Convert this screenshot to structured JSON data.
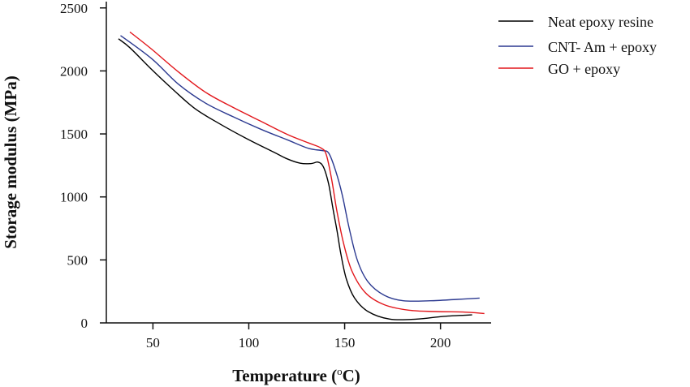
{
  "chart_data": {
    "type": "line",
    "title": "",
    "xlabel": "Temperature (",
    "xlabel_sup": "o",
    "xlabel_tail": "C)",
    "ylabel": "Storage modulus (MPa)",
    "xlim": [
      25.7,
      226.4
    ],
    "ylim": [
      0,
      2550
    ],
    "xticks": [
      50,
      100,
      150,
      200
    ],
    "yticks": [
      0,
      500,
      1000,
      1500,
      2000,
      2500
    ],
    "grid": false,
    "legend_position": "top-right",
    "series": [
      {
        "name": "Neat epoxy resine",
        "color": "#000000",
        "x": [
          32.0,
          38.0,
          49.3,
          60.6,
          71.9,
          84.6,
          98.7,
          112.8,
          119.9,
          126.9,
          132.6,
          136.1,
          138.9,
          141.7,
          143.9,
          146.0,
          148.1,
          150.9,
          155.2,
          162.2,
          173.5,
          187.6,
          201.7,
          216.5
        ],
        "y": [
          2255,
          2184,
          2012,
          1851,
          1701,
          1582,
          1464,
          1357,
          1303,
          1267,
          1265,
          1276,
          1239,
          1099,
          906,
          734,
          541,
          348,
          197,
          90,
          30,
          30,
          52,
          64
        ]
      },
      {
        "name": "CNT- Am + epoxy",
        "color": "#2b3990",
        "x": [
          33.1,
          49.3,
          63.4,
          77.5,
          91.7,
          105.8,
          119.9,
          131.2,
          138.2,
          141.7,
          145.3,
          148.8,
          152.3,
          156.6,
          162.2,
          170.7,
          180.6,
          194.7,
          208.8,
          220.4
        ],
        "y": [
          2281,
          2098,
          1894,
          1744,
          1637,
          1540,
          1454,
          1385,
          1368,
          1347,
          1207,
          1013,
          756,
          498,
          326,
          219,
          176,
          176,
          187,
          197
        ]
      },
      {
        "name": "GO + epoxy",
        "color": "#e2161b",
        "x": [
          38.0,
          49.3,
          63.4,
          77.5,
          91.7,
          105.8,
          119.9,
          131.2,
          137.6,
          140.4,
          143.2,
          146.0,
          149.5,
          153.8,
          160.8,
          170.7,
          183.4,
          197.5,
          211.6,
          222.9
        ],
        "y": [
          2309,
          2173,
          1991,
          1830,
          1711,
          1604,
          1497,
          1428,
          1389,
          1336,
          1142,
          885,
          627,
          412,
          240,
          144,
          101,
          90,
          86,
          75
        ]
      }
    ]
  }
}
